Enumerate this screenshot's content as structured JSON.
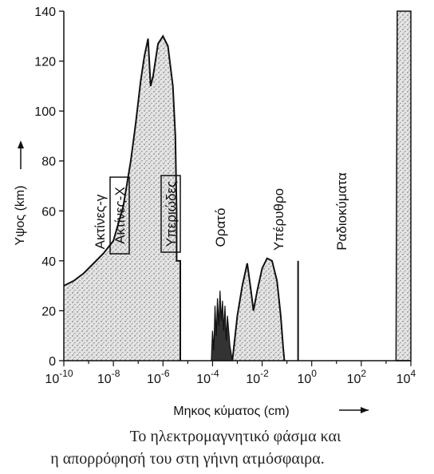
{
  "chart_data": {
    "type": "area",
    "x_scale": "log",
    "xlim_exponents": [
      -10,
      4
    ],
    "ylim": [
      0,
      140
    ],
    "x_ticks": [
      {
        "base": "10",
        "exp": "-10"
      },
      {
        "base": "10",
        "exp": "-8"
      },
      {
        "base": "10",
        "exp": "-6"
      },
      {
        "base": "10",
        "exp": "-4"
      },
      {
        "base": "10",
        "exp": "-2"
      },
      {
        "base": "10",
        "exp": "0"
      },
      {
        "base": "10",
        "exp": "2"
      },
      {
        "base": "10",
        "exp": "4"
      }
    ],
    "y_ticks": [
      "0",
      "20",
      "40",
      "60",
      "80",
      "100",
      "120",
      "140"
    ],
    "xlabel": "Μηκος κύματος (cm)",
    "ylabel": "Υψος (km)",
    "regions": [
      {
        "label": "Ακτίνες-γ",
        "boxed": false
      },
      {
        "label": "Ακτίνες-Χ",
        "boxed": true
      },
      {
        "label": "Υπεριώδες",
        "boxed": true
      },
      {
        "label": "Ορατό",
        "boxed": false
      },
      {
        "label": "Υπέρυθρο",
        "boxed": false
      },
      {
        "label": "Ραδιοκύματα",
        "boxed": false
      }
    ],
    "absorption_boundary": [
      {
        "x_exp": -10.0,
        "y": 30
      },
      {
        "x_exp": -9.6,
        "y": 32
      },
      {
        "x_exp": -9.2,
        "y": 35
      },
      {
        "x_exp": -8.8,
        "y": 39
      },
      {
        "x_exp": -8.4,
        "y": 43
      },
      {
        "x_exp": -8.0,
        "y": 48
      },
      {
        "x_exp": -7.6,
        "y": 62
      },
      {
        "x_exp": -7.3,
        "y": 80
      },
      {
        "x_exp": -7.1,
        "y": 95
      },
      {
        "x_exp": -6.9,
        "y": 112
      },
      {
        "x_exp": -6.75,
        "y": 122
      },
      {
        "x_exp": -6.6,
        "y": 129
      },
      {
        "x_exp": -6.5,
        "y": 110
      },
      {
        "x_exp": -6.4,
        "y": 114
      },
      {
        "x_exp": -6.2,
        "y": 127
      },
      {
        "x_exp": -6.0,
        "y": 130
      },
      {
        "x_exp": -5.8,
        "y": 126
      },
      {
        "x_exp": -5.6,
        "y": 110
      },
      {
        "x_exp": -5.5,
        "y": 90
      },
      {
        "x_exp": -5.45,
        "y": 60
      },
      {
        "x_exp": -5.45,
        "y": 40
      },
      {
        "x_exp": -5.3,
        "y": 40
      },
      {
        "x_exp": -5.3,
        "y": 0
      }
    ],
    "visible_window_spikes": [
      {
        "x_exp": -4.05,
        "y": 0
      },
      {
        "x_exp": -4.0,
        "y": 12
      },
      {
        "x_exp": -3.95,
        "y": 4
      },
      {
        "x_exp": -3.9,
        "y": 22
      },
      {
        "x_exp": -3.85,
        "y": 10
      },
      {
        "x_exp": -3.8,
        "y": 25
      },
      {
        "x_exp": -3.75,
        "y": 14
      },
      {
        "x_exp": -3.7,
        "y": 28
      },
      {
        "x_exp": -3.65,
        "y": 16
      },
      {
        "x_exp": -3.6,
        "y": 24
      },
      {
        "x_exp": -3.55,
        "y": 12
      },
      {
        "x_exp": -3.5,
        "y": 22
      },
      {
        "x_exp": -3.45,
        "y": 8
      },
      {
        "x_exp": -3.4,
        "y": 18
      },
      {
        "x_exp": -3.3,
        "y": 6
      },
      {
        "x_exp": -3.2,
        "y": 0
      }
    ],
    "infrared_band": [
      {
        "x_exp": -3.2,
        "y": 0
      },
      {
        "x_exp": -3.0,
        "y": 18
      },
      {
        "x_exp": -2.8,
        "y": 30
      },
      {
        "x_exp": -2.6,
        "y": 39
      },
      {
        "x_exp": -2.45,
        "y": 28
      },
      {
        "x_exp": -2.35,
        "y": 20
      },
      {
        "x_exp": -2.2,
        "y": 28
      },
      {
        "x_exp": -2.0,
        "y": 37
      },
      {
        "x_exp": -1.8,
        "y": 41
      },
      {
        "x_exp": -1.6,
        "y": 40
      },
      {
        "x_exp": -1.4,
        "y": 32
      },
      {
        "x_exp": -1.25,
        "y": 18
      },
      {
        "x_exp": -1.15,
        "y": 5
      },
      {
        "x_exp": -1.1,
        "y": 0
      }
    ],
    "radio_line": {
      "x_exp": -0.55,
      "y_top": 40
    },
    "radio_right_band": [
      {
        "x_exp": 3.4,
        "y": 0
      },
      {
        "x_exp": 3.45,
        "y": 140
      },
      {
        "x_exp": 4.0,
        "y": 140
      },
      {
        "x_exp": 4.0,
        "y": 0
      }
    ]
  },
  "caption": {
    "line1": "Το ηλεκτρομαγνητικό φάσμα και",
    "line2": "η απορρόφησή του στη γήινη ατμόσφαιρα."
  },
  "colors": {
    "fill": "#cfcfcf",
    "ink": "#111111"
  }
}
